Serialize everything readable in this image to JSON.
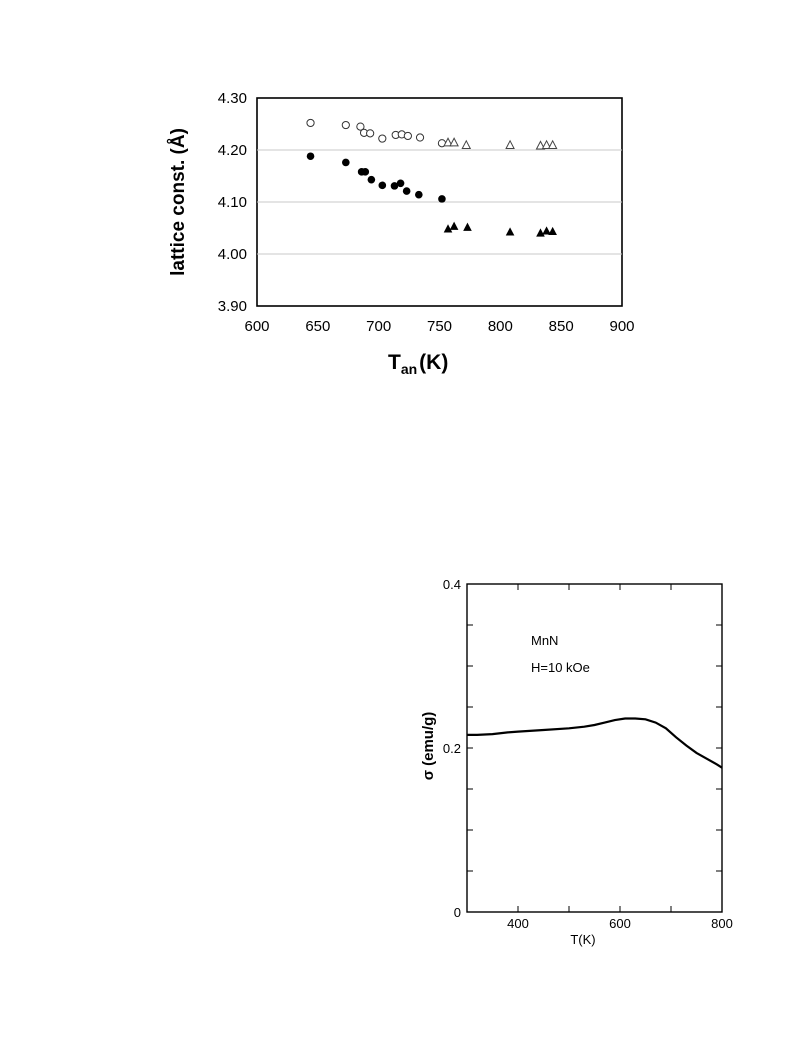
{
  "chart_data": [
    {
      "type": "scatter",
      "xlabel": "T",
      "xlabel_sub": "an",
      "xlabel_unit": "(K)",
      "ylabel": "lattice  const. (Å)",
      "xlim": [
        600,
        900
      ],
      "ylim": [
        3.9,
        4.3
      ],
      "x_ticks": [
        "600",
        "650",
        "700",
        "750",
        "800",
        "850",
        "900"
      ],
      "y_ticks": [
        "3.90",
        "4.00",
        "4.10",
        "4.20",
        "4.30"
      ],
      "grid": "horizontal",
      "series": [
        {
          "marker": "open-circle",
          "points": [
            [
              644,
              4.252
            ],
            [
              673,
              4.248
            ],
            [
              685,
              4.245
            ],
            [
              688,
              4.233
            ],
            [
              693,
              4.232
            ],
            [
              703,
              4.222
            ],
            [
              714,
              4.229
            ],
            [
              719,
              4.23
            ],
            [
              724,
              4.227
            ],
            [
              734,
              4.224
            ],
            [
              752,
              4.213
            ]
          ]
        },
        {
          "marker": "open-triangle",
          "points": [
            [
              757,
              4.214
            ],
            [
              762,
              4.214
            ],
            [
              772,
              4.209
            ],
            [
              808,
              4.209
            ],
            [
              833,
              4.208
            ],
            [
              838,
              4.209
            ],
            [
              843,
              4.209
            ]
          ]
        },
        {
          "marker": "filled-circle",
          "points": [
            [
              644,
              4.188
            ],
            [
              673,
              4.176
            ],
            [
              686,
              4.158
            ],
            [
              689,
              4.158
            ],
            [
              694,
              4.143
            ],
            [
              703,
              4.132
            ],
            [
              713,
              4.131
            ],
            [
              718,
              4.136
            ],
            [
              723,
              4.121
            ],
            [
              733,
              4.114
            ],
            [
              752,
              4.106
            ]
          ]
        },
        {
          "marker": "filled-triangle",
          "points": [
            [
              757,
              4.048
            ],
            [
              762,
              4.053
            ],
            [
              773,
              4.051
            ],
            [
              808,
              4.042
            ],
            [
              833,
              4.04
            ],
            [
              838,
              4.044
            ],
            [
              843,
              4.043
            ]
          ]
        }
      ]
    },
    {
      "type": "line",
      "annotations": [
        "MnN",
        "H=10 kOe"
      ],
      "xlabel": "T(K)",
      "ylabel": "σ (emu/g)",
      "xlim": [
        300,
        800
      ],
      "ylim": [
        0,
        0.4
      ],
      "x_ticks": [
        "400",
        "600",
        "800"
      ],
      "y_ticks": [
        "0",
        "0.2",
        "0.4"
      ],
      "series": [
        {
          "x": [
            300,
            320,
            350,
            380,
            400,
            450,
            500,
            530,
            550,
            570,
            590,
            610,
            630,
            650,
            670,
            690,
            710,
            730,
            750,
            770,
            790,
            800
          ],
          "y": [
            0.216,
            0.216,
            0.217,
            0.219,
            0.22,
            0.222,
            0.224,
            0.226,
            0.228,
            0.231,
            0.234,
            0.236,
            0.236,
            0.235,
            0.231,
            0.224,
            0.213,
            0.203,
            0.194,
            0.187,
            0.18,
            0.176
          ]
        }
      ]
    }
  ]
}
